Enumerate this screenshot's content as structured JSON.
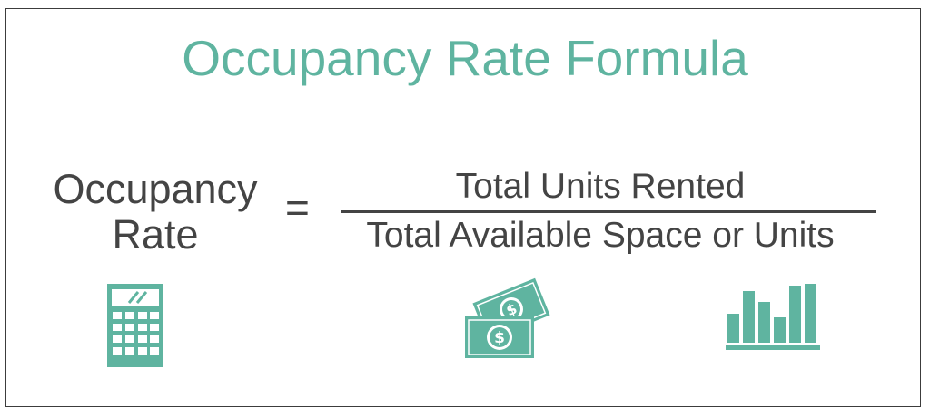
{
  "title": "Occupancy Rate Formula",
  "formula": {
    "lhs_line1": "Occupancy",
    "lhs_line2": "Rate",
    "equals": "=",
    "numerator": "Total Units Rented",
    "denominator": "Total Available Space or Units"
  },
  "icons": [
    "calculator-icon",
    "money-icon",
    "bar-chart-icon"
  ],
  "colors": {
    "accent": "#5fb4a0",
    "text": "#444444",
    "border": "#3c3c3c"
  }
}
